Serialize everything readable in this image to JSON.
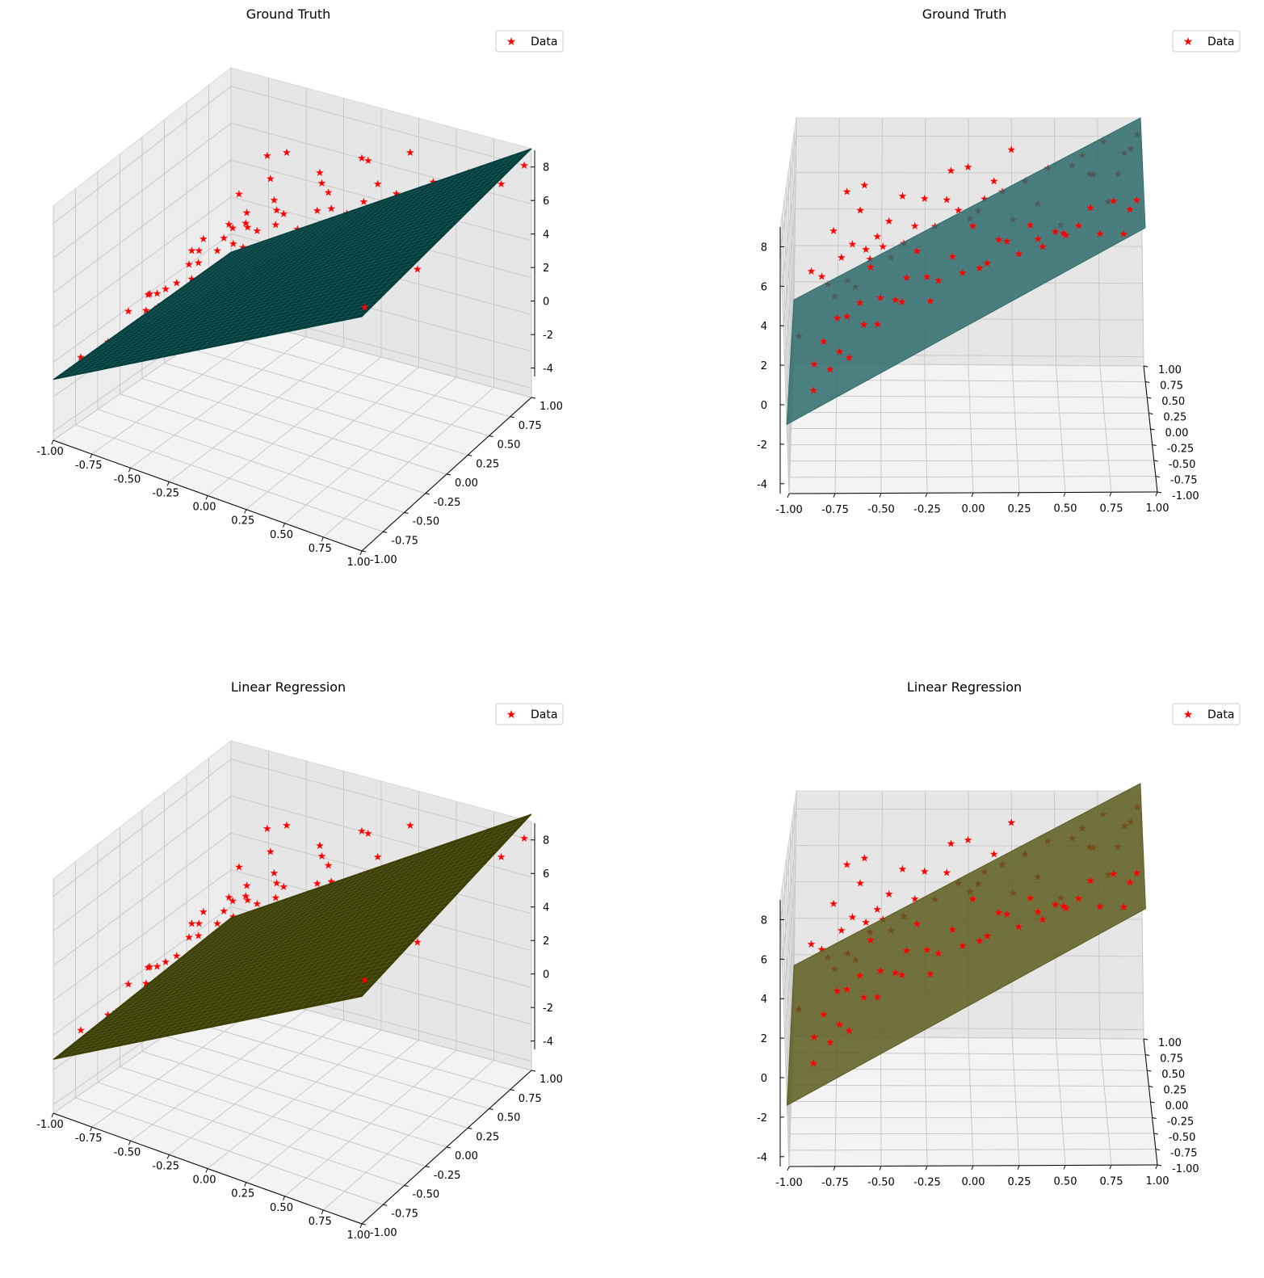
{
  "chart_data": [
    {
      "type": "scatter",
      "panel": "top-left",
      "title": "Ground Truth",
      "legend": "Data",
      "legend_position": "top-right",
      "surface_color": "#003c3c",
      "surface_alpha": 1.0,
      "surface_slope_y": 0.0,
      "view": "oblique",
      "xlim": [
        -1.0,
        1.0
      ],
      "ylim": [
        -1.0,
        1.0
      ],
      "zlim": [
        -4.5,
        9.0
      ],
      "xticks": [
        "-1.00",
        "-0.75",
        "-0.50",
        "-0.25",
        "0.00",
        "0.25",
        "0.50",
        "0.75",
        "1.00"
      ],
      "yticks": [
        "-1.00",
        "-0.75",
        "-0.50",
        "-0.25",
        "0.00",
        "0.25",
        "0.50",
        "0.75",
        "1.00"
      ],
      "zticks": [
        "-4",
        "-2",
        "0",
        "2",
        "4",
        "6",
        "8"
      ]
    },
    {
      "type": "scatter",
      "panel": "top-right",
      "title": "Ground Truth",
      "legend": "Data",
      "legend_position": "top-right",
      "surface_color": "#2e6b6b",
      "surface_alpha": 0.85,
      "surface_slope_y": 0.0,
      "view": "side",
      "xlim": [
        -1.0,
        1.0
      ],
      "ylim": [
        -1.0,
        1.0
      ],
      "zlim": [
        -4.5,
        9.0
      ],
      "xticks": [
        "-1.00",
        "-0.75",
        "-0.50",
        "-0.25",
        "0.00",
        "0.25",
        "0.50",
        "0.75",
        "1.00"
      ],
      "yticks": [
        "-1.00",
        "-0.75",
        "-0.50",
        "-0.25",
        "0.00",
        "0.25",
        "0.50",
        "0.75",
        "1.00"
      ],
      "zticks": [
        "-4",
        "-2",
        "0",
        "2",
        "4",
        "6",
        "8"
      ]
    },
    {
      "type": "scatter",
      "panel": "bottom-left",
      "title": "Linear Regression",
      "legend": "Data",
      "legend_position": "top-right",
      "surface_color": "#3d3d00",
      "surface_alpha": 1.0,
      "surface_slope_y": 0.4,
      "view": "oblique",
      "xlim": [
        -1.0,
        1.0
      ],
      "ylim": [
        -1.0,
        1.0
      ],
      "zlim": [
        -4.5,
        9.0
      ],
      "xticks": [
        "-1.00",
        "-0.75",
        "-0.50",
        "-0.25",
        "0.00",
        "0.25",
        "0.50",
        "0.75",
        "1.00"
      ],
      "yticks": [
        "-1.00",
        "-0.75",
        "-0.50",
        "-0.25",
        "0.00",
        "0.25",
        "0.50",
        "0.75",
        "1.00"
      ],
      "zticks": [
        "-4",
        "-2",
        "0",
        "2",
        "4",
        "6",
        "8"
      ]
    },
    {
      "type": "scatter",
      "panel": "bottom-right",
      "title": "Linear Regression",
      "legend": "Data",
      "legend_position": "top-right",
      "surface_color": "#5c5c1f",
      "surface_alpha": 0.85,
      "surface_slope_y": 0.4,
      "view": "side",
      "xlim": [
        -1.0,
        1.0
      ],
      "ylim": [
        -1.0,
        1.0
      ],
      "zlim": [
        -4.5,
        9.0
      ],
      "xticks": [
        "-1.00",
        "-0.75",
        "-0.50",
        "-0.25",
        "0.00",
        "0.25",
        "0.50",
        "0.75",
        "1.00"
      ],
      "yticks": [
        "-1.00",
        "-0.75",
        "-0.50",
        "-0.25",
        "0.00",
        "0.25",
        "0.50",
        "0.75",
        "1.00"
      ],
      "zticks": [
        "-4",
        "-2",
        "0",
        "2",
        "4",
        "6",
        "8"
      ]
    }
  ],
  "scatter_points": [
    [
      -0.86,
      -0.3,
      -0.1
    ],
    [
      -0.83,
      0.4,
      2.3
    ],
    [
      -0.8,
      -0.5,
      1.7
    ],
    [
      -0.79,
      0.2,
      2.5
    ],
    [
      -0.77,
      0.7,
      3.8
    ],
    [
      -0.76,
      -0.8,
      1.2
    ],
    [
      -0.75,
      0.1,
      2.2
    ],
    [
      -0.73,
      -0.2,
      2.0
    ],
    [
      -0.72,
      0.5,
      3.0
    ],
    [
      -0.71,
      -0.6,
      1.5
    ],
    [
      -0.7,
      0.9,
      5.3
    ],
    [
      -0.68,
      0.3,
      2.4
    ],
    [
      -0.67,
      -0.4,
      2.7
    ],
    [
      -0.66,
      0.6,
      3.4
    ],
    [
      -0.65,
      -0.9,
      2.1
    ],
    [
      -0.63,
      0.0,
      3.0
    ],
    [
      -0.62,
      0.8,
      4.6
    ],
    [
      -0.6,
      -0.3,
      3.1
    ],
    [
      -0.58,
      0.45,
      3.6
    ],
    [
      -0.57,
      -0.7,
      3.2
    ],
    [
      -0.55,
      0.15,
      4.0
    ],
    [
      -0.54,
      -0.15,
      4.5
    ],
    [
      -0.52,
      0.7,
      3.5
    ],
    [
      -0.5,
      -0.5,
      2.6
    ],
    [
      -0.48,
      0.3,
      4.2
    ],
    [
      -0.47,
      -0.85,
      5.0
    ],
    [
      -0.45,
      0.55,
      4.8
    ],
    [
      -0.43,
      0.05,
      4.4
    ],
    [
      -0.4,
      -0.35,
      3.4
    ],
    [
      -0.38,
      0.95,
      4.9
    ],
    [
      -0.36,
      0.2,
      4.7
    ],
    [
      -0.33,
      -0.6,
      5.3
    ],
    [
      -0.3,
      0.4,
      5.0
    ],
    [
      -0.28,
      -0.1,
      5.2
    ],
    [
      -0.25,
      0.75,
      5.4
    ],
    [
      -0.22,
      -0.45,
      4.9
    ],
    [
      -0.18,
      0.1,
      5.9
    ],
    [
      -0.15,
      -0.75,
      5.6
    ],
    [
      -0.12,
      0.6,
      5.8
    ],
    [
      -0.08,
      -0.2,
      5.2
    ],
    [
      -0.05,
      0.35,
      6.0
    ],
    [
      -0.02,
      -0.55,
      5.4
    ],
    [
      0.0,
      0.85,
      6.8
    ],
    [
      0.02,
      0.0,
      6.6
    ],
    [
      0.04,
      -0.3,
      7.1
    ],
    [
      0.06,
      0.5,
      5.5
    ],
    [
      0.08,
      -0.8,
      6.4
    ],
    [
      0.1,
      0.25,
      6.9
    ],
    [
      0.12,
      -0.65,
      6.2
    ],
    [
      0.15,
      0.7,
      6.5
    ],
    [
      0.18,
      -0.1,
      5.8
    ],
    [
      0.2,
      0.45,
      6.7
    ],
    [
      0.23,
      -0.5,
      6.9
    ],
    [
      0.26,
      0.15,
      6.1
    ],
    [
      0.3,
      -0.9,
      7.4
    ],
    [
      0.33,
      0.6,
      6.8
    ],
    [
      0.36,
      -0.25,
      7.0
    ],
    [
      0.4,
      0.3,
      6.5
    ],
    [
      0.43,
      -0.7,
      7.2
    ],
    [
      0.46,
      0.8,
      6.9
    ],
    [
      0.5,
      -0.4,
      7.1
    ],
    [
      0.53,
      0.1,
      6.0
    ],
    [
      0.56,
      -0.6,
      7.5
    ],
    [
      0.6,
      0.55,
      7.8
    ],
    [
      0.63,
      -0.15,
      6.7
    ],
    [
      0.66,
      0.9,
      7.3
    ],
    [
      0.7,
      -0.35,
      8.2
    ],
    [
      0.72,
      0.35,
      7.9
    ],
    [
      0.75,
      -0.85,
      8.3
    ],
    [
      0.78,
      0.65,
      8.8
    ],
    [
      0.8,
      0.0,
      7.5
    ],
    [
      0.83,
      -0.5,
      9.0
    ],
    [
      0.86,
      0.2,
      8.4
    ],
    [
      0.88,
      -0.75,
      8.0
    ],
    [
      0.9,
      0.5,
      8.6
    ],
    [
      0.92,
      -0.2,
      7.7
    ],
    [
      0.94,
      0.75,
      8.1
    ],
    [
      0.96,
      -0.95,
      10.3
    ],
    [
      -0.9,
      0.85,
      1.1
    ],
    [
      -0.85,
      -0.95,
      0.6
    ],
    [
      -0.6,
      0.95,
      5.5
    ],
    [
      -0.35,
      -0.95,
      5.1
    ],
    [
      0.25,
      0.9,
      7.6
    ],
    [
      0.55,
      -0.95,
      8.6
    ],
    [
      0.98,
      0.95,
      8.3
    ],
    [
      -0.95,
      0.0,
      0.4
    ],
    [
      -0.1,
      0.95,
      6.3
    ],
    [
      0.4,
      -0.05,
      5.7
    ],
    [
      -0.2,
      -0.7,
      4.4
    ],
    [
      0.7,
      0.7,
      6.9
    ]
  ]
}
